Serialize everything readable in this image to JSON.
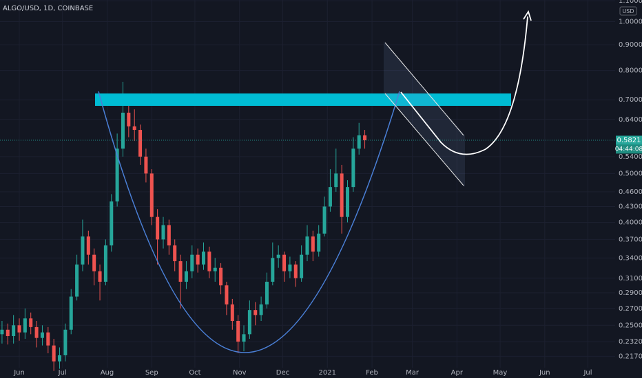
{
  "chart_data": {
    "type": "candlestick",
    "title": "ALGO/USD, 1D, COINBASE",
    "currency": "USD",
    "log_scale": true,
    "grid": true,
    "up_color": "#26a69a",
    "down_color": "#ef5350",
    "last_price": 0.5821,
    "countdown": "04:44:08",
    "xlim": [
      -13.4,
      413.9
    ],
    "xticks": [
      {
        "value": 0,
        "label": "Jun"
      },
      {
        "value": 30,
        "label": "Jul"
      },
      {
        "value": 61,
        "label": "Aug"
      },
      {
        "value": 92,
        "label": "Sep"
      },
      {
        "value": 122,
        "label": "Oct"
      },
      {
        "value": 153,
        "label": "Nov"
      },
      {
        "value": 183,
        "label": "Dec"
      },
      {
        "value": 214,
        "label": "2021"
      },
      {
        "value": 245,
        "label": "Feb"
      },
      {
        "value": 273,
        "label": "Mar"
      },
      {
        "value": 304,
        "label": "Apr"
      },
      {
        "value": 334,
        "label": "May"
      },
      {
        "value": 365,
        "label": "Jun"
      },
      {
        "value": 395,
        "label": "Jul"
      }
    ],
    "ylim": [
      0.206,
      1.104
    ],
    "yticks": [
      {
        "value": 0.217,
        "label": "0.2170"
      },
      {
        "value": 0.232,
        "label": "0.2320"
      },
      {
        "value": 0.25,
        "label": "0.2500"
      },
      {
        "value": 0.27,
        "label": "0.2700"
      },
      {
        "value": 0.29,
        "label": "0.2900"
      },
      {
        "value": 0.31,
        "label": "0.3100"
      },
      {
        "value": 0.34,
        "label": "0.3400"
      },
      {
        "value": 0.37,
        "label": "0.3700"
      },
      {
        "value": 0.4,
        "label": "0.4000"
      },
      {
        "value": 0.43,
        "label": "0.4300"
      },
      {
        "value": 0.46,
        "label": "0.4600"
      },
      {
        "value": 0.5,
        "label": "0.5000"
      },
      {
        "value": 0.54,
        "label": "0.5400"
      },
      {
        "value": 0.64,
        "label": "0.6400"
      },
      {
        "value": 0.7,
        "label": "0.7000"
      },
      {
        "value": 0.8,
        "label": "0.8000"
      },
      {
        "value": 0.9,
        "label": "0.9000"
      },
      {
        "value": 1,
        "label": "1.0000"
      },
      {
        "value": 1.1,
        "label": "1.1000"
      }
    ],
    "x": [
      -12,
      -8,
      -4,
      0,
      4,
      8,
      12,
      16,
      20,
      24,
      28,
      32,
      36,
      40,
      44,
      48,
      52,
      56,
      60,
      64,
      68,
      72,
      76,
      80,
      84,
      88,
      92,
      96,
      100,
      104,
      108,
      112,
      116,
      120,
      124,
      128,
      132,
      136,
      140,
      144,
      148,
      152,
      156,
      160,
      164,
      168,
      172,
      176,
      180,
      184,
      188,
      192,
      196,
      200,
      204,
      208,
      212,
      216,
      220,
      224,
      228,
      232,
      236,
      240
    ],
    "open": [
      0.24,
      0.245,
      0.238,
      0.25,
      0.242,
      0.258,
      0.248,
      0.236,
      0.242,
      0.228,
      0.212,
      0.218,
      0.245,
      0.285,
      0.33,
      0.375,
      0.345,
      0.32,
      0.305,
      0.36,
      0.44,
      0.56,
      0.66,
      0.62,
      0.61,
      0.54,
      0.5,
      0.41,
      0.37,
      0.395,
      0.36,
      0.335,
      0.305,
      0.32,
      0.345,
      0.33,
      0.35,
      0.32,
      0.325,
      0.3,
      0.275,
      0.255,
      0.232,
      0.24,
      0.268,
      0.262,
      0.275,
      0.305,
      0.34,
      0.345,
      0.32,
      0.33,
      0.31,
      0.345,
      0.375,
      0.35,
      0.38,
      0.43,
      0.47,
      0.5,
      0.41,
      0.47,
      0.56,
      0.595
    ],
    "high": [
      0.255,
      0.252,
      0.262,
      0.258,
      0.27,
      0.265,
      0.255,
      0.25,
      0.248,
      0.235,
      0.226,
      0.252,
      0.295,
      0.345,
      0.405,
      0.385,
      0.355,
      0.33,
      0.37,
      0.455,
      0.6,
      0.76,
      0.69,
      0.67,
      0.625,
      0.56,
      0.51,
      0.425,
      0.41,
      0.405,
      0.37,
      0.345,
      0.335,
      0.36,
      0.355,
      0.365,
      0.358,
      0.34,
      0.332,
      0.305,
      0.282,
      0.262,
      0.25,
      0.28,
      0.278,
      0.285,
      0.318,
      0.365,
      0.36,
      0.35,
      0.342,
      0.335,
      0.36,
      0.395,
      0.385,
      0.395,
      0.45,
      0.51,
      0.56,
      0.52,
      0.485,
      0.59,
      0.63,
      0.61
    ],
    "low": [
      0.23,
      0.229,
      0.23,
      0.233,
      0.235,
      0.24,
      0.226,
      0.228,
      0.22,
      0.203,
      0.205,
      0.212,
      0.24,
      0.28,
      0.32,
      0.33,
      0.3,
      0.28,
      0.3,
      0.35,
      0.43,
      0.54,
      0.59,
      0.58,
      0.52,
      0.48,
      0.395,
      0.33,
      0.355,
      0.345,
      0.32,
      0.27,
      0.295,
      0.31,
      0.318,
      0.322,
      0.31,
      0.305,
      0.288,
      0.262,
      0.245,
      0.22,
      0.222,
      0.235,
      0.25,
      0.255,
      0.27,
      0.3,
      0.325,
      0.305,
      0.31,
      0.298,
      0.305,
      0.335,
      0.335,
      0.342,
      0.375,
      0.42,
      0.46,
      0.38,
      0.4,
      0.46,
      0.545,
      0.56
    ],
    "close": [
      0.245,
      0.238,
      0.25,
      0.242,
      0.258,
      0.248,
      0.236,
      0.242,
      0.228,
      0.212,
      0.218,
      0.245,
      0.285,
      0.33,
      0.375,
      0.345,
      0.32,
      0.305,
      0.36,
      0.44,
      0.56,
      0.66,
      0.62,
      0.61,
      0.54,
      0.5,
      0.41,
      0.37,
      0.395,
      0.36,
      0.335,
      0.305,
      0.32,
      0.345,
      0.33,
      0.35,
      0.32,
      0.325,
      0.3,
      0.275,
      0.255,
      0.232,
      0.24,
      0.268,
      0.262,
      0.275,
      0.305,
      0.34,
      0.345,
      0.32,
      0.33,
      0.31,
      0.345,
      0.375,
      0.35,
      0.38,
      0.43,
      0.47,
      0.5,
      0.41,
      0.47,
      0.56,
      0.595,
      0.582
    ]
  }
}
